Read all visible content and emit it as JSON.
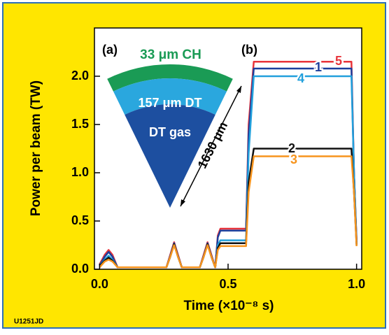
{
  "chart_data": {
    "type": "line",
    "panel_labels": [
      "(a)",
      "(b)"
    ],
    "y_label": "Power per beam (TW)",
    "x_label": "Time (×10⁻⁸ s)",
    "figure_id": "U1251JD",
    "inset": {
      "outer_layer": "33 μm CH",
      "middle_layer": "157 μm DT",
      "core": "DT gas",
      "radius": "1630 μm"
    },
    "x": [
      0,
      0.02,
      0.035,
      0.05,
      0.07,
      0.26,
      0.275,
      0.29,
      0.305,
      0.32,
      0.39,
      0.405,
      0.42,
      0.435,
      0.45,
      0.46,
      0.47,
      0.57,
      0.58,
      0.6,
      0.98,
      0.99,
      1.0
    ],
    "series": [
      {
        "name": "5",
        "color": "#e8333a",
        "values": [
          0.05,
          0.15,
          0.2,
          0.15,
          0.02,
          0.02,
          0.15,
          0.28,
          0.15,
          0.02,
          0.02,
          0.15,
          0.28,
          0.15,
          0.02,
          0.35,
          0.42,
          0.42,
          1.5,
          2.15,
          2.15,
          1.0,
          0.3
        ]
      },
      {
        "name": "1",
        "color": "#1d3f9c",
        "values": [
          0.04,
          0.13,
          0.18,
          0.13,
          0.02,
          0.02,
          0.14,
          0.27,
          0.14,
          0.02,
          0.02,
          0.14,
          0.27,
          0.14,
          0.02,
          0.33,
          0.4,
          0.4,
          1.4,
          2.08,
          2.08,
          1.0,
          0.28
        ]
      },
      {
        "name": "4",
        "color": "#22a0dc",
        "values": [
          0.03,
          0.1,
          0.14,
          0.1,
          0.02,
          0.02,
          0.13,
          0.26,
          0.13,
          0.02,
          0.02,
          0.13,
          0.26,
          0.13,
          0.02,
          0.25,
          0.3,
          0.3,
          1.2,
          2.0,
          2.0,
          1.0,
          0.26
        ]
      },
      {
        "name": "2",
        "color": "#111111",
        "values": [
          0.03,
          0.09,
          0.12,
          0.09,
          0.02,
          0.02,
          0.13,
          0.26,
          0.13,
          0.02,
          0.02,
          0.13,
          0.26,
          0.13,
          0.02,
          0.22,
          0.27,
          0.27,
          0.9,
          1.25,
          1.25,
          0.8,
          0.25
        ]
      },
      {
        "name": "3",
        "color": "#f7941d",
        "values": [
          0.02,
          0.08,
          0.1,
          0.08,
          0.02,
          0.02,
          0.13,
          0.25,
          0.13,
          0.02,
          0.02,
          0.13,
          0.25,
          0.13,
          0.02,
          0.2,
          0.24,
          0.24,
          0.8,
          1.17,
          1.17,
          0.8,
          0.24
        ]
      }
    ],
    "xlim": [
      -0.02,
      1.02
    ],
    "ylim": [
      0,
      2.5
    ],
    "xticks": [
      {
        "value": 0,
        "label": "0.0"
      },
      0.5,
      {
        "value": 1,
        "label": "1.0"
      }
    ],
    "yticks": [
      {
        "value": 0,
        "label": "0.0"
      },
      0.5,
      {
        "value": 1,
        "label": "1.0"
      },
      1.5,
      {
        "value": 2,
        "label": "2.0"
      }
    ]
  }
}
